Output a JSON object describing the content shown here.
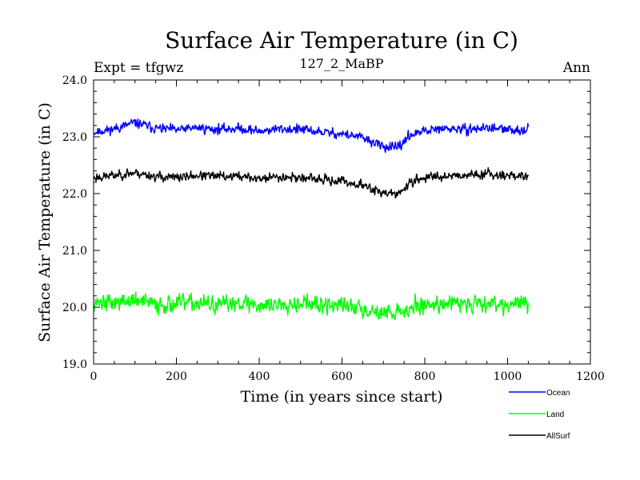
{
  "chart_data": {
    "type": "line",
    "title": "Surface Air Temperature (in C)",
    "subtitle": "127_2_MaBP",
    "left_label": "Expt = tfgwz",
    "right_label": "Ann",
    "xlabel": "Time (in years since start)",
    "ylabel": "Surface Air Temperature (in C)",
    "xlim": [
      0,
      1200
    ],
    "ylim": [
      19.0,
      24.0
    ],
    "xticks": [
      0,
      200,
      400,
      600,
      800,
      1000,
      1200
    ],
    "xtick_labels": [
      "0",
      "200",
      "400",
      "600",
      "800",
      "1000",
      "1200"
    ],
    "yticks": [
      19.0,
      20.0,
      21.0,
      22.0,
      23.0,
      24.0
    ],
    "ytick_labels": [
      "19.0",
      "20.0",
      "21.0",
      "22.0",
      "23.0",
      "24.0"
    ],
    "grid": false,
    "legend_position": "bottom-right",
    "series": [
      {
        "name": "Ocean",
        "color": "#0000ff",
        "x": [
          0,
          50,
          100,
          150,
          200,
          250,
          300,
          350,
          400,
          450,
          500,
          550,
          600,
          625,
          650,
          675,
          700,
          725,
          740,
          760,
          800,
          850,
          900,
          950,
          1000,
          1050
        ],
        "values": [
          23.08,
          23.14,
          23.25,
          23.15,
          23.12,
          23.16,
          23.13,
          23.15,
          23.1,
          23.14,
          23.13,
          23.08,
          23.05,
          23.02,
          22.98,
          22.9,
          22.83,
          22.8,
          22.82,
          23.02,
          23.1,
          23.14,
          23.13,
          23.16,
          23.12,
          23.13
        ]
      },
      {
        "name": "Land",
        "color": "#00ff00",
        "x": [
          0,
          50,
          100,
          150,
          200,
          250,
          300,
          350,
          400,
          450,
          500,
          550,
          600,
          650,
          700,
          750,
          800,
          850,
          900,
          950,
          1000,
          1050
        ],
        "values": [
          20.1,
          20.08,
          20.12,
          20.05,
          20.06,
          20.08,
          20.02,
          20.1,
          20.03,
          20.06,
          20.09,
          20.02,
          20.04,
          19.98,
          19.9,
          19.94,
          20.05,
          20.07,
          20.06,
          20.09,
          20.05,
          20.08
        ]
      },
      {
        "name": "AllSurf",
        "color": "#000000",
        "x": [
          0,
          50,
          100,
          150,
          200,
          250,
          300,
          350,
          400,
          450,
          500,
          550,
          600,
          625,
          650,
          675,
          700,
          725,
          740,
          760,
          800,
          850,
          900,
          950,
          1000,
          1050
        ],
        "values": [
          22.28,
          22.32,
          22.37,
          22.3,
          22.28,
          22.32,
          22.3,
          22.31,
          22.26,
          22.3,
          22.28,
          22.24,
          22.22,
          22.18,
          22.14,
          22.08,
          22.02,
          21.99,
          22.0,
          22.18,
          22.28,
          22.32,
          22.33,
          22.35,
          22.32,
          22.3
        ]
      }
    ]
  }
}
